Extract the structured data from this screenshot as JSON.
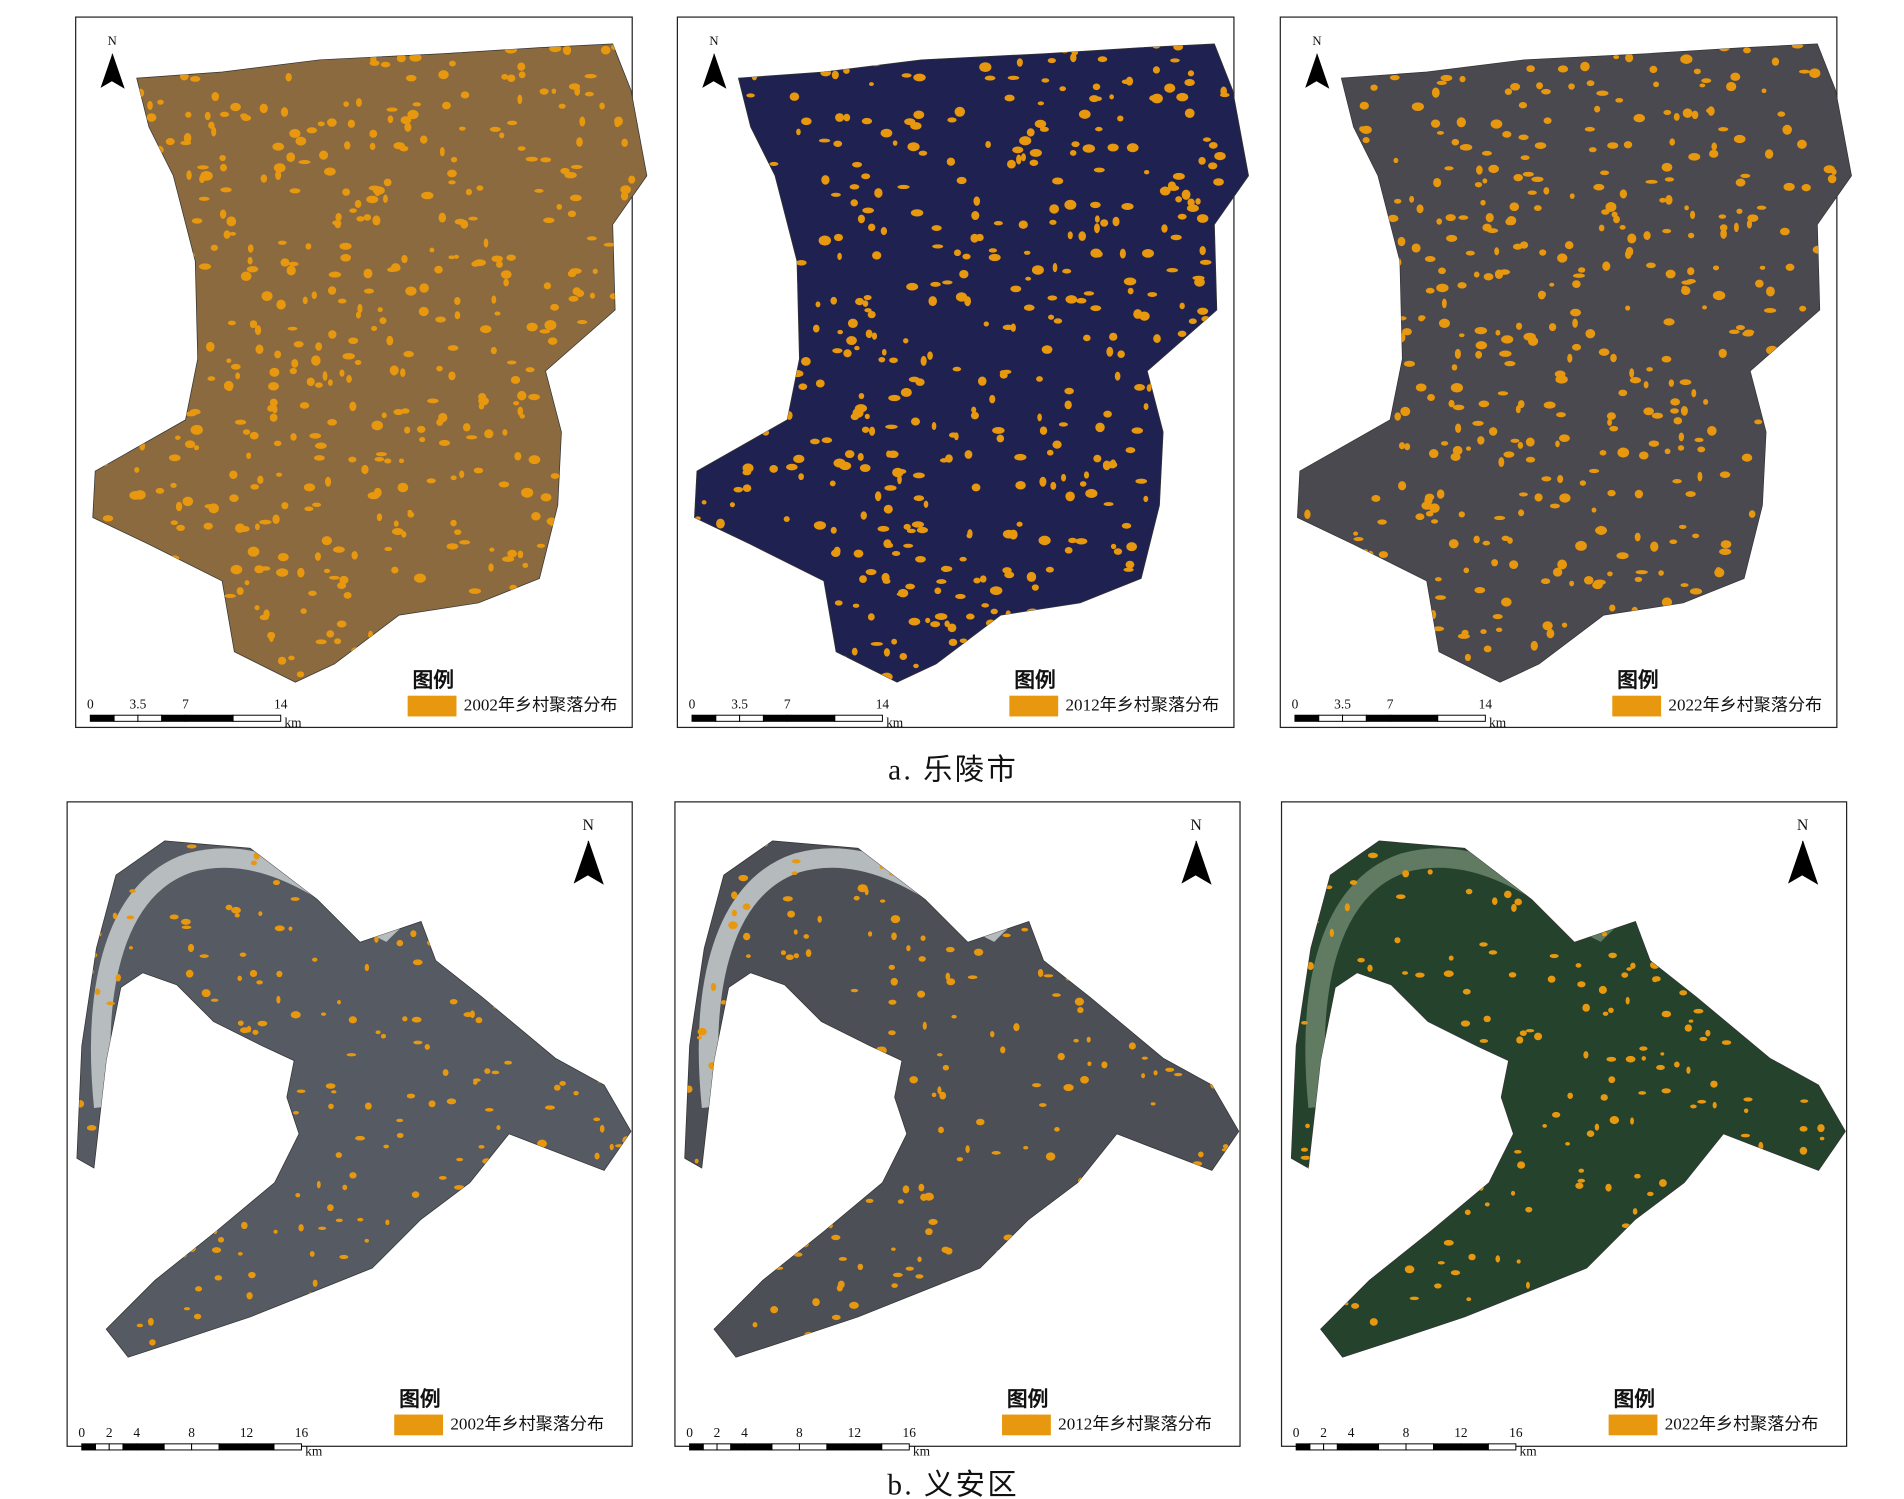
{
  "sections": [
    {
      "caption": "a. 乐陵市",
      "maps": [
        {
          "north": "N",
          "scale_labels": [
            "0",
            "3.5",
            "7",
            "14"
          ],
          "scale_unit": "km",
          "legend_title": "图例",
          "legend_item": "2002年乡村聚落分布"
        },
        {
          "north": "N",
          "scale_labels": [
            "0",
            "3.5",
            "7",
            "14"
          ],
          "scale_unit": "km",
          "legend_title": "图例",
          "legend_item": "2012年乡村聚落分布"
        },
        {
          "north": "N",
          "scale_labels": [
            "0",
            "3.5",
            "7",
            "14"
          ],
          "scale_unit": "km",
          "legend_title": "图例",
          "legend_item": "2022年乡村聚落分布"
        }
      ]
    },
    {
      "caption": "b. 义安区",
      "maps": [
        {
          "north": "N",
          "scale_labels": [
            "0",
            "2",
            "4",
            "8",
            "12",
            "16"
          ],
          "scale_unit": "km",
          "legend_title": "图例",
          "legend_item": "2002年乡村聚落分布"
        },
        {
          "north": "N",
          "scale_labels": [
            "0",
            "2",
            "4",
            "8",
            "12",
            "16"
          ],
          "scale_unit": "km",
          "legend_title": "图例",
          "legend_item": "2012年乡村聚落分布"
        },
        {
          "north": "N",
          "scale_labels": [
            "0",
            "2",
            "4",
            "8",
            "12",
            "16"
          ],
          "scale_unit": "km",
          "legend_title": "图例",
          "legend_item": "2022年乡村聚落分布"
        }
      ]
    }
  ]
}
